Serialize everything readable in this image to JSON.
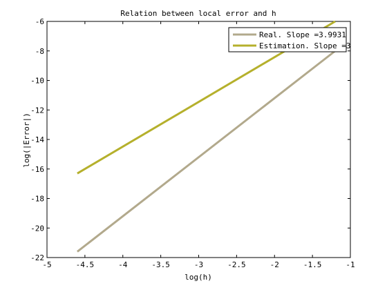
{
  "chart_data": {
    "type": "line",
    "title": "Relation between local error and h",
    "xlabel": "log(h)",
    "ylabel": "log(|Error|)",
    "xlim": [
      -5,
      -1
    ],
    "ylim": [
      -22,
      -6
    ],
    "xticks": [
      -5,
      -4.5,
      -4,
      -3.5,
      -3,
      -2.5,
      -2,
      -1.5,
      -1
    ],
    "xtick_labels": [
      "-5",
      "-4.5",
      "-4",
      "-3.5",
      "-3",
      "-2.5",
      "-2",
      "-1.5",
      "-1"
    ],
    "yticks": [
      -22,
      -20,
      -18,
      -16,
      -14,
      -12,
      -10,
      -8,
      -6
    ],
    "ytick_labels": [
      "-22",
      "-20",
      "-18",
      "-16",
      "-14",
      "-12",
      "-10",
      "-8",
      "-6"
    ],
    "grid": false,
    "legend_position": "top-right",
    "series": [
      {
        "name": "Real. Slope =3.9931",
        "color": "#b2a98c",
        "x": [
          -4.6,
          -1.2
        ],
        "y": [
          -21.6,
          -8.0
        ]
      },
      {
        "name": "Estimation. Slope =3",
        "color": "#b5b02c",
        "x": [
          -4.6,
          -1.2
        ],
        "y": [
          -16.3,
          -6.0
        ]
      }
    ]
  }
}
